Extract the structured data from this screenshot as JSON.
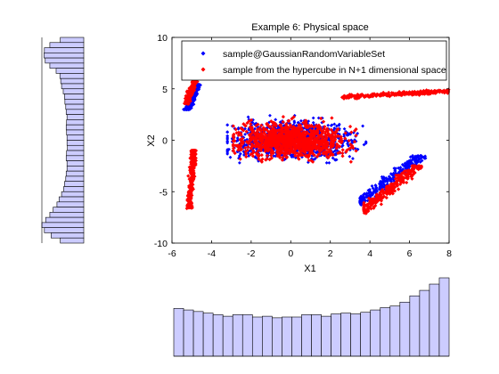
{
  "chart_data": [
    {
      "type": "scatter",
      "title": "Example 6: Physical space",
      "xlabel": "X1",
      "ylabel": "X2",
      "xlim": [
        -6,
        8
      ],
      "ylim": [
        -10,
        10
      ],
      "xticks": [
        -6,
        -4,
        -2,
        0,
        2,
        4,
        6,
        8
      ],
      "yticks": [
        -10,
        -5,
        0,
        5,
        10
      ],
      "legend": {
        "placement": "top-right"
      },
      "series": [
        {
          "name": "sample@GaussianRandomVariableSet",
          "color": "#0000ff",
          "marker": "diamond",
          "clusters": [
            {
              "center": [
                0,
                0
              ],
              "x_range": [
                -3.2,
                3.8
              ],
              "y_range": [
                -2.2,
                2.4
              ]
            },
            {
              "center": [
                5,
                -3.8
              ],
              "x_range": [
                3.5,
                6.9
              ],
              "y_range": [
                -6.5,
                -1.5
              ]
            },
            {
              "center": [
                -5,
                4
              ],
              "x_range": [
                -5.7,
                -4.4
              ],
              "y_range": [
                3.0,
                6.0
              ]
            }
          ]
        },
        {
          "name": "sample from the hypercube in N+1 dimensional space",
          "color": "#ff0000",
          "marker": "diamond",
          "clusters": [
            {
              "center": [
                0,
                0
              ],
              "x_range": [
                -2.9,
                3.3
              ],
              "y_range": [
                -2.1,
                2.3
              ]
            },
            {
              "center": [
                -5,
                5
              ],
              "x_range": [
                -5.6,
                -4.5
              ],
              "y_range": [
                3.3,
                6.2
              ]
            },
            {
              "center": [
                5.3,
                4.5
              ],
              "x_range": [
                2.5,
                8
              ],
              "y_range": [
                3.7,
                5.3
              ]
            },
            {
              "center": [
                -5.0,
                -3.5
              ],
              "x_range": [
                -5.5,
                -4.4
              ],
              "y_range": [
                -7.5,
                -1.0
              ]
            },
            {
              "center": [
                5,
                -4.7
              ],
              "x_range": [
                3.7,
                6.8
              ],
              "y_range": [
                -7.3,
                -2.5
              ]
            }
          ]
        }
      ]
    },
    {
      "type": "bar",
      "orientation": "horizontal",
      "variable": "X2",
      "bar_color": "#ccccff",
      "bins": 40,
      "relative_lengths": [
        0.56,
        0.81,
        0.94,
        0.95,
        0.92,
        0.81,
        0.66,
        0.57,
        0.55,
        0.53,
        0.49,
        0.46,
        0.45,
        0.43,
        0.42,
        0.4,
        0.41,
        0.42,
        0.41,
        0.4,
        0.4,
        0.39,
        0.41,
        0.42,
        0.4,
        0.4,
        0.42,
        0.43,
        0.46,
        0.48,
        0.53,
        0.59,
        0.64,
        0.73,
        0.81,
        0.91,
        1.0,
        0.94,
        0.78,
        0.56
      ]
    },
    {
      "type": "bar",
      "orientation": "vertical",
      "variable": "X1",
      "bar_color": "#ccccff",
      "bins": 28,
      "relative_heights": [
        0.61,
        0.59,
        0.57,
        0.55,
        0.53,
        0.51,
        0.53,
        0.53,
        0.5,
        0.51,
        0.49,
        0.5,
        0.5,
        0.53,
        0.53,
        0.51,
        0.54,
        0.55,
        0.54,
        0.56,
        0.59,
        0.62,
        0.64,
        0.69,
        0.77,
        0.84,
        0.92,
        1.0
      ]
    }
  ]
}
